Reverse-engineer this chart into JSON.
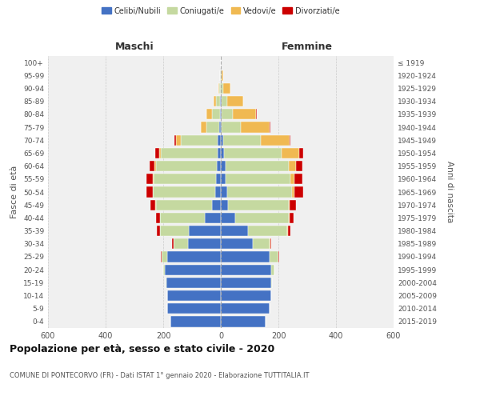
{
  "age_groups": [
    "0-4",
    "5-9",
    "10-14",
    "15-19",
    "20-24",
    "25-29",
    "30-34",
    "35-39",
    "40-44",
    "45-49",
    "50-54",
    "55-59",
    "60-64",
    "65-69",
    "70-74",
    "75-79",
    "80-84",
    "85-89",
    "90-94",
    "95-99",
    "100+"
  ],
  "birth_years": [
    "2015-2019",
    "2010-2014",
    "2005-2009",
    "2000-2004",
    "1995-1999",
    "1990-1994",
    "1985-1989",
    "1980-1984",
    "1975-1979",
    "1970-1974",
    "1965-1969",
    "1960-1964",
    "1955-1959",
    "1950-1954",
    "1945-1949",
    "1940-1944",
    "1935-1939",
    "1930-1934",
    "1925-1929",
    "1920-1924",
    "≤ 1919"
  ],
  "maschi_celibi": [
    175,
    185,
    185,
    190,
    195,
    185,
    115,
    110,
    55,
    30,
    20,
    18,
    15,
    12,
    10,
    5,
    3,
    2,
    1,
    1,
    0
  ],
  "maschi_coniugati": [
    0,
    0,
    0,
    2,
    5,
    20,
    50,
    100,
    155,
    195,
    215,
    215,
    210,
    195,
    130,
    45,
    28,
    14,
    4,
    1,
    0
  ],
  "maschi_vedovi": [
    0,
    0,
    0,
    0,
    0,
    0,
    0,
    1,
    1,
    2,
    2,
    3,
    5,
    8,
    15,
    20,
    18,
    8,
    3,
    1,
    0
  ],
  "maschi_divorziati": [
    0,
    0,
    0,
    0,
    0,
    2,
    5,
    12,
    15,
    18,
    22,
    22,
    18,
    12,
    5,
    0,
    0,
    0,
    0,
    0,
    0
  ],
  "femmine_celibi": [
    155,
    170,
    175,
    175,
    175,
    170,
    110,
    95,
    50,
    25,
    22,
    18,
    16,
    12,
    8,
    4,
    3,
    2,
    1,
    1,
    0
  ],
  "femmine_coniugati": [
    0,
    0,
    0,
    2,
    10,
    30,
    60,
    135,
    185,
    210,
    225,
    225,
    220,
    200,
    130,
    65,
    40,
    20,
    8,
    2,
    0
  ],
  "femmine_vedovi": [
    0,
    0,
    0,
    0,
    0,
    0,
    1,
    2,
    3,
    5,
    8,
    12,
    25,
    60,
    100,
    100,
    80,
    55,
    25,
    5,
    1
  ],
  "femmine_divorziati": [
    0,
    0,
    0,
    0,
    0,
    2,
    5,
    10,
    15,
    22,
    32,
    28,
    22,
    15,
    5,
    2,
    1,
    1,
    0,
    0,
    0
  ],
  "colors": {
    "celibi": "#4472C4",
    "coniugati": "#c5d9a0",
    "vedovi": "#f0b952",
    "divorziati": "#cc0000"
  },
  "title": "Popolazione per età, sesso e stato civile - 2020",
  "subtitle": "COMUNE DI PONTECORVO (FR) - Dati ISTAT 1° gennaio 2020 - Elaborazione TUTTITALIA.IT",
  "ylabel": "Fasce di età",
  "right_ylabel": "Anni di nascita",
  "xlabel_left": "Maschi",
  "xlabel_right": "Femmine",
  "xlim": 600,
  "bg_color": "#f0f0f0",
  "grid_color": "#cccccc"
}
